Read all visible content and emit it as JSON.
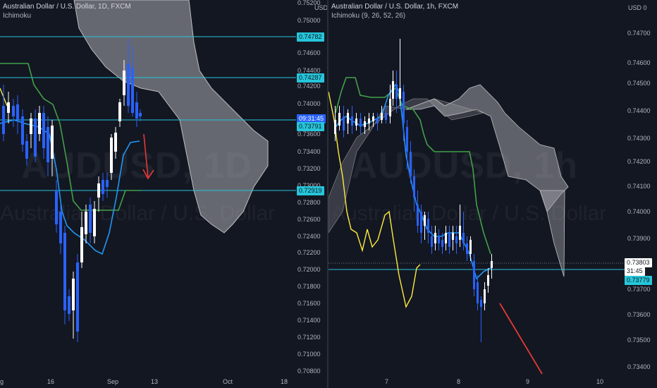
{
  "left": {
    "title": "Australian Dollar / U.S. Dollar, 1D, FXCM",
    "indicator": "Ichimoku",
    "watermark_symbol": "AUDUSD, 1D",
    "watermark_name": "Australian Dollar / U.S. Dollar",
    "price_axis": [
      "0.75200",
      "0.75000",
      "0.74600",
      "0.74400",
      "0.74200",
      "0.74000",
      "0.73600",
      "0.73400",
      "0.73200",
      "0.73000",
      "0.72800",
      "0.72600",
      "0.72400",
      "0.72200",
      "0.72000",
      "0.71800",
      "0.71600",
      "0.71400",
      "0.71200",
      "0.71000",
      "0.70800"
    ],
    "currency_label": "USD",
    "time_axis": [
      "g",
      "16",
      "Sep",
      "13",
      "Oct",
      "18"
    ],
    "level_tags": [
      "0.74782",
      "0.74287",
      "0.72919"
    ],
    "countdown_tag": "09:31:45",
    "price_tag": "0.73791"
  },
  "right": {
    "title": "Australian Dollar / U.S. Dollar, 1h, FXCM",
    "indicator": "Ichimoku (9, 26, 52, 26)",
    "watermark_symbol": "AUDUSD, 1h",
    "watermark_name": "Australian Dollar / U.S. Dollar",
    "price_axis": [
      "0.74700",
      "0.74600",
      "0.74500",
      "0.74400",
      "0.74300",
      "0.74200",
      "0.74100",
      "0.74000",
      "0.73900",
      "0.73800",
      "0.73700",
      "0.73600",
      "0.73500",
      "0.73400"
    ],
    "currency_label": "USD 0",
    "time_axis": [
      "7",
      "8",
      "9",
      "10"
    ],
    "last_price": "0.73803",
    "countdown": "31:45",
    "level_tag": "0.73779"
  },
  "colors": {
    "background": "#131722",
    "level_line": "#26c6da",
    "tag_bg": "#26c6da",
    "up_candle": "#ffffff",
    "down_candle": "#2962ff",
    "tenkan": "#2196f3",
    "kijun": "#43a047",
    "chikou": "#ffeb3b",
    "cloud": "#9e9ea6",
    "arrow_red": "#e53935"
  }
}
